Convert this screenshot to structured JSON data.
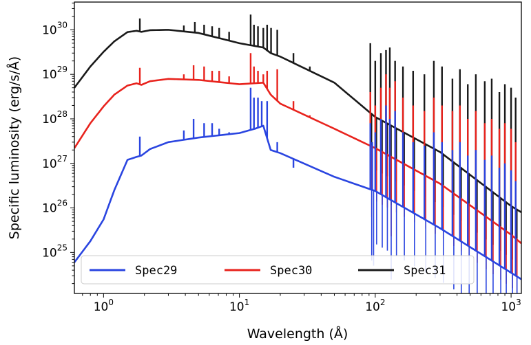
{
  "chart_data": {
    "type": "line",
    "title": "",
    "xlabel": "Wavelength (Å)",
    "ylabel": "Specific luminosity (erg/s/Å)",
    "xscale": "log",
    "yscale": "log",
    "xlim": [
      0.61,
      1190
    ],
    "ylim": [
      1.2e+24,
      4.2e+30
    ],
    "xticks": [
      {
        "base": "10",
        "exp": "0",
        "value": 1
      },
      {
        "base": "10",
        "exp": "1",
        "value": 10
      },
      {
        "base": "10",
        "exp": "2",
        "value": 100
      },
      {
        "base": "10",
        "exp": "3",
        "value": 1000
      }
    ],
    "yticks": [
      {
        "base": "10",
        "exp": "25",
        "value": 1e+25
      },
      {
        "base": "10",
        "exp": "26",
        "value": 1e+26
      },
      {
        "base": "10",
        "exp": "27",
        "value": 1e+27
      },
      {
        "base": "10",
        "exp": "28",
        "value": 1e+28
      },
      {
        "base": "10",
        "exp": "29",
        "value": 1e+29
      },
      {
        "base": "10",
        "exp": "30",
        "value": 1e+30
      }
    ],
    "grid": false,
    "legend_placement": "lower-center",
    "series": [
      {
        "name": "Spec31",
        "color": "#1a1a1a",
        "continuum": [
          [
            0.61,
            5e+28
          ],
          [
            0.8,
            1.5e+29
          ],
          [
            1.0,
            3.2e+29
          ],
          [
            1.2,
            5.5e+29
          ],
          [
            1.5,
            8.9e+29
          ],
          [
            1.75,
            9.5e+29
          ],
          [
            1.9,
            9e+29
          ],
          [
            2.2,
            9.8e+29
          ],
          [
            3,
            1e+30
          ],
          [
            5,
            8.5e+29
          ],
          [
            10,
            5e+29
          ],
          [
            15,
            4e+29
          ],
          [
            17,
            3e+29
          ],
          [
            20,
            2.5e+29
          ],
          [
            50,
            6.5e+28
          ],
          [
            100,
            1.1e+28
          ],
          [
            300,
            1.8e+27
          ],
          [
            1000,
            1.1e+26
          ],
          [
            1190,
            8e+25
          ]
        ],
        "lines": [
          [
            1.85,
            1.8e+30
          ],
          [
            3.9,
            1.25e+30
          ],
          [
            4.7,
            1.5e+30
          ],
          [
            5.5,
            1.3e+30
          ],
          [
            6.3,
            1.2e+30
          ],
          [
            7.1,
            1.1e+30
          ],
          [
            8.4,
            9e+29
          ],
          [
            12.1,
            2.2e+30
          ],
          [
            12.8,
            1.3e+30
          ],
          [
            13.7,
            1.2e+30
          ],
          [
            15.0,
            1.1e+30
          ],
          [
            16.0,
            1.3e+30
          ],
          [
            17.1,
            1.1e+30
          ],
          [
            19.0,
            1e+30
          ],
          [
            25,
            3e+29
          ],
          [
            33,
            1.5e+29
          ],
          [
            92,
            5e+29
          ],
          [
            100,
            2e+29
          ],
          [
            110,
            3e+29
          ],
          [
            120,
            3.5e+29
          ],
          [
            128,
            4e+29
          ],
          [
            140,
            2e+29
          ],
          [
            160,
            1.5e+29
          ],
          [
            190,
            1.2e+29
          ],
          [
            230,
            1e+29
          ],
          [
            270,
            2e+29
          ],
          [
            310,
            1.5e+29
          ],
          [
            370,
            8e+28
          ],
          [
            420,
            1.3e+29
          ],
          [
            480,
            6e+28
          ],
          [
            550,
            1e+29
          ],
          [
            640,
            7e+28
          ],
          [
            720,
            8e+28
          ],
          [
            820,
            4e+28
          ],
          [
            900,
            6e+28
          ],
          [
            1000,
            5e+28
          ],
          [
            1080,
            3e+28
          ]
        ]
      },
      {
        "name": "Spec30",
        "color": "#e8231d",
        "continuum": [
          [
            0.61,
            2.2e+27
          ],
          [
            0.8,
            8e+27
          ],
          [
            1.0,
            1.9e+28
          ],
          [
            1.2,
            3.5e+28
          ],
          [
            1.5,
            5.6e+28
          ],
          [
            1.75,
            6.3e+28
          ],
          [
            1.9,
            5.8e+28
          ],
          [
            2.2,
            7e+28
          ],
          [
            3,
            7.9e+28
          ],
          [
            5,
            7.5e+28
          ],
          [
            10,
            6e+28
          ],
          [
            15,
            6.5e+28
          ],
          [
            17,
            3.5e+28
          ],
          [
            20,
            2.2e+28
          ],
          [
            50,
            6e+27
          ],
          [
            100,
            2.2e+27
          ],
          [
            300,
            3.5e+26
          ],
          [
            1000,
            2.5e+25
          ],
          [
            1190,
            1.6e+25
          ]
        ],
        "lines": [
          [
            1.85,
            1.4e+29
          ],
          [
            3.9,
            1e+29
          ],
          [
            4.6,
            1.6e+29
          ],
          [
            5.5,
            1.5e+29
          ],
          [
            6.3,
            1.2e+29
          ],
          [
            7.1,
            1.2e+29
          ],
          [
            8.4,
            9e+28
          ],
          [
            12.1,
            3e+29
          ],
          [
            12.8,
            1.5e+29
          ],
          [
            13.7,
            1.2e+29
          ],
          [
            15.0,
            1e+29
          ],
          [
            16.0,
            1.2e+29
          ],
          [
            19.0,
            1.3e+29
          ],
          [
            25,
            2.5e+28
          ],
          [
            33,
            1.2e+28
          ],
          [
            92,
            4e+28
          ],
          [
            100,
            2e+28
          ],
          [
            110,
            5e+28
          ],
          [
            120,
            1e+29
          ],
          [
            128,
            5e+28
          ],
          [
            140,
            7e+28
          ],
          [
            160,
            3e+28
          ],
          [
            190,
            2e+28
          ],
          [
            230,
            1.5e+28
          ],
          [
            270,
            3e+28
          ],
          [
            310,
            2e+28
          ],
          [
            370,
            1.5e+28
          ],
          [
            420,
            2e+28
          ],
          [
            480,
            1e+28
          ],
          [
            550,
            1.5e+28
          ],
          [
            640,
            8e+27
          ],
          [
            720,
            1e+28
          ],
          [
            820,
            6e+27
          ],
          [
            900,
            8e+27
          ],
          [
            1000,
            6e+27
          ],
          [
            1080,
            3e+27
          ]
        ]
      },
      {
        "name": "Spec29",
        "color": "#2a45e0",
        "continuum": [
          [
            0.61,
            6e+24
          ],
          [
            0.8,
            1.8e+25
          ],
          [
            1.0,
            5.5e+25
          ],
          [
            1.2,
            2.5e+26
          ],
          [
            1.5,
            1.2e+27
          ],
          [
            1.75,
            1.4e+27
          ],
          [
            1.9,
            1.5e+27
          ],
          [
            2.2,
            2.1e+27
          ],
          [
            3,
            3e+27
          ],
          [
            5,
            3.8e+27
          ],
          [
            10,
            4.8e+27
          ],
          [
            13,
            6e+27
          ],
          [
            15,
            7e+27
          ],
          [
            17,
            2e+27
          ],
          [
            20,
            1.7e+27
          ],
          [
            50,
            5e+26
          ],
          [
            100,
            2.4e+26
          ],
          [
            300,
            3.5e+25
          ],
          [
            1000,
            3.5e+24
          ],
          [
            1190,
            2.5e+24
          ]
        ],
        "lines": [
          [
            1.85,
            4e+27
          ],
          [
            3.9,
            5.5e+27
          ],
          [
            4.6,
            1e+28
          ],
          [
            5.5,
            8e+27
          ],
          [
            6.3,
            8e+27
          ],
          [
            7.1,
            6e+27
          ],
          [
            8.4,
            5e+27
          ],
          [
            12.1,
            5e+28
          ],
          [
            12.8,
            3e+28
          ],
          [
            13.7,
            3e+28
          ],
          [
            14.6,
            2.5e+28
          ],
          [
            16.0,
            2.5e+28
          ],
          [
            19.0,
            3e+27
          ],
          [
            25,
            8e+26
          ],
          [
            92,
            8e+27
          ],
          [
            95,
            3e+27
          ],
          [
            100,
            5e+27
          ],
          [
            110,
            1e+28
          ],
          [
            120,
            2e+28
          ],
          [
            128,
            1e+28
          ],
          [
            140,
            1.5e+28
          ],
          [
            160,
            5e+27
          ],
          [
            190,
            3e+27
          ],
          [
            230,
            2.5e+27
          ],
          [
            270,
            5e+27
          ],
          [
            310,
            3e+27
          ],
          [
            370,
            2e+27
          ],
          [
            420,
            3e+27
          ],
          [
            480,
            1.5e+27
          ],
          [
            550,
            2e+27
          ],
          [
            640,
            1.2e+27
          ],
          [
            720,
            1.5e+27
          ],
          [
            820,
            8e+26
          ],
          [
            900,
            1e+27
          ],
          [
            1000,
            7e+26
          ],
          [
            1080,
            4e+26
          ]
        ]
      }
    ],
    "legend_order": [
      "Spec29",
      "Spec30",
      "Spec31"
    ]
  }
}
